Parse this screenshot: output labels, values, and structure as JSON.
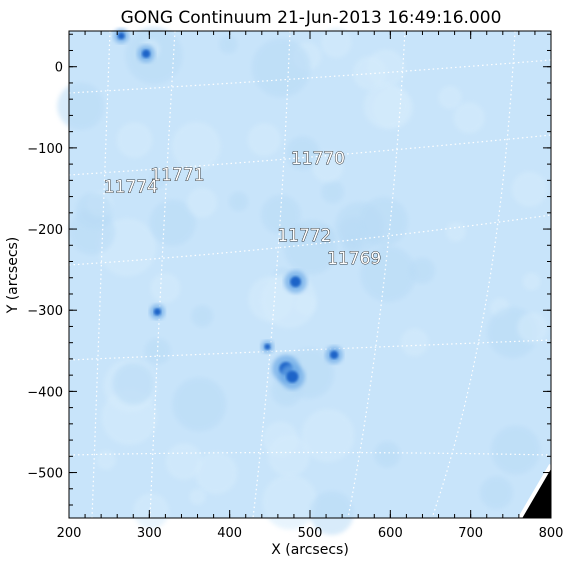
{
  "title": "GONG Continuum 21-Jun-2013 16:49:16.000",
  "x_axis": {
    "label": "X (arcsecs)",
    "range": [
      200,
      800
    ],
    "ticks": [
      "200",
      "300",
      "400",
      "500",
      "600",
      "700",
      "800"
    ]
  },
  "y_axis": {
    "label": "Y (arcsecs)",
    "range": [
      -556,
      44
    ],
    "ticks": [
      "0",
      "−100",
      "−200",
      "−300",
      "−400",
      "−500"
    ]
  },
  "active_regions": [
    {
      "label": "11770",
      "x": 510,
      "y": -120
    },
    {
      "label": "11771",
      "x": 335,
      "y": -140
    },
    {
      "label": "11774",
      "x": 277,
      "y": -155
    },
    {
      "label": "11772",
      "x": 493,
      "y": -215
    },
    {
      "label": "11769",
      "x": 555,
      "y": -243
    }
  ],
  "sunspots": [
    {
      "x": 265,
      "y": 38,
      "size": 6
    },
    {
      "x": 296,
      "y": 16,
      "size": 7
    },
    {
      "x": 310,
      "y": -302,
      "size": 6
    },
    {
      "x": 482,
      "y": -265,
      "size": 9
    },
    {
      "x": 447,
      "y": -345,
      "size": 5
    },
    {
      "x": 470,
      "y": -372,
      "size": 11
    },
    {
      "x": 478,
      "y": -382,
      "size": 10
    },
    {
      "x": 530,
      "y": -355,
      "size": 7
    }
  ],
  "colors": {
    "disk": "#c8e4fa",
    "sunspot": "#1a64c8",
    "grid": "#ffffff",
    "off_limb": "#000000"
  }
}
